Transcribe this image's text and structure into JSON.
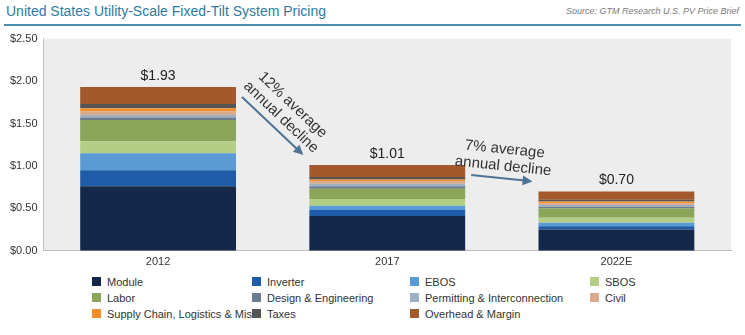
{
  "chart_data": {
    "type": "bar",
    "title": "United States Utility-Scale Fixed-Tilt System Pricing",
    "subtitle": "Source: GTM Research U.S. PV Price Brief",
    "categories": [
      "2012",
      "2017",
      "2022E"
    ],
    "stacked": true,
    "grid": false,
    "legend": "bottom",
    "ylim": [
      0,
      2.5
    ],
    "yticks": [
      {
        "value": 0,
        "label": "$0.00"
      },
      {
        "value": 0.5,
        "label": "$0.50"
      },
      {
        "value": 1,
        "label": "$1.00"
      },
      {
        "value": 1.5,
        "label": "$1.50"
      },
      {
        "value": 2,
        "label": "$2.00"
      },
      {
        "value": 2.5,
        "label": "$2.50"
      }
    ],
    "totals": [
      1.93,
      1.01,
      0.7
    ],
    "total_labels": [
      "$1.93",
      "$1.01",
      "$0.70"
    ],
    "annotations": [
      {
        "text": [
          "12% average",
          "annual decline"
        ],
        "from": "2012",
        "to": "2017"
      },
      {
        "text": [
          "7% average",
          "annual decline"
        ],
        "from": "2017",
        "to": "2022E"
      }
    ],
    "series": [
      {
        "name": "Module",
        "color": "#14294a",
        "values": [
          0.76,
          0.41,
          0.25
        ]
      },
      {
        "name": "Inverter",
        "color": "#1f5ca8",
        "values": [
          0.19,
          0.07,
          0.04
        ]
      },
      {
        "name": "EBOS",
        "color": "#5b9bd5",
        "values": [
          0.2,
          0.05,
          0.04
        ]
      },
      {
        "name": "SBOS",
        "color": "#b3cf86",
        "values": [
          0.14,
          0.08,
          0.06
        ]
      },
      {
        "name": "Labor",
        "color": "#8ba65a",
        "values": [
          0.25,
          0.12,
          0.11
        ]
      },
      {
        "name": "Design & Engineering",
        "color": "#6b7c90",
        "values": [
          0.03,
          0.03,
          0.02
        ]
      },
      {
        "name": "Permitting & Interconnection",
        "color": "#9fb0c2",
        "values": [
          0.03,
          0.03,
          0.02
        ]
      },
      {
        "name": "Civil",
        "color": "#d8aa8c",
        "values": [
          0.04,
          0.03,
          0.02
        ]
      },
      {
        "name": "Supply Chain, Logistics & Misc",
        "color": "#f28e2b",
        "values": [
          0.04,
          0.02,
          0.02
        ]
      },
      {
        "name": "Taxes",
        "color": "#555555",
        "values": [
          0.05,
          0.03,
          0.02
        ]
      },
      {
        "name": "Overhead & Margin",
        "color": "#a3592b",
        "values": [
          0.2,
          0.14,
          0.1
        ]
      }
    ]
  }
}
